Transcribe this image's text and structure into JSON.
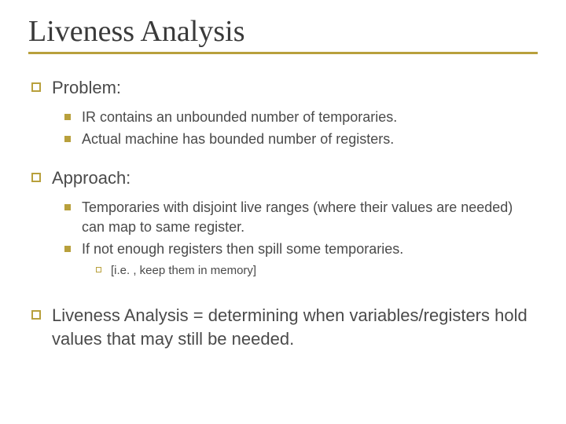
{
  "title": "Liveness Analysis",
  "accent_color": "#b8a03c",
  "text_color": "#4a4a4a",
  "background_color": "#ffffff",
  "sections": {
    "problem": {
      "label": "Problem:",
      "items": [
        "IR contains an unbounded number of temporaries.",
        "Actual machine has bounded number of registers."
      ]
    },
    "approach": {
      "label": "Approach:",
      "items": [
        "Temporaries with disjoint live ranges (where their values are needed) can map to same register.",
        "If not enough registers then spill some temporaries."
      ],
      "sub_of_1": "[i.e. , keep them in memory]"
    },
    "summary": "Liveness Analysis = determining when variables/registers hold values that may still be needed."
  }
}
